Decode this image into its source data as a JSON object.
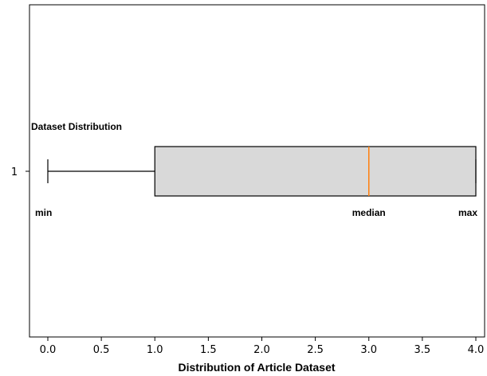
{
  "chart_data": {
    "type": "boxplot",
    "title": "",
    "xlabel": "Distribution of Article Dataset",
    "ylabel": "",
    "xlim": [
      -0.15,
      4.1
    ],
    "xticks": [
      "0.0",
      "0.5",
      "1.0",
      "1.5",
      "2.0",
      "2.5",
      "3.0",
      "3.5",
      "4.0"
    ],
    "xtick_values": [
      0.0,
      0.5,
      1.0,
      1.5,
      2.0,
      2.5,
      3.0,
      3.5,
      4.0
    ],
    "yticks": [
      "1"
    ],
    "grid": false,
    "series": [
      {
        "category": "1",
        "min": 0.0,
        "q1": 1.0,
        "median": 3.0,
        "q3": 4.0,
        "max": 4.0
      }
    ],
    "series_label": "Dataset Distribution",
    "annotations": {
      "min": "min",
      "median": "median",
      "max": "max"
    },
    "colors": {
      "box_fill": "#d9d9d9",
      "box_edge": "#000000",
      "median_line": "#ff7f0e",
      "whisker": "#000000"
    }
  }
}
